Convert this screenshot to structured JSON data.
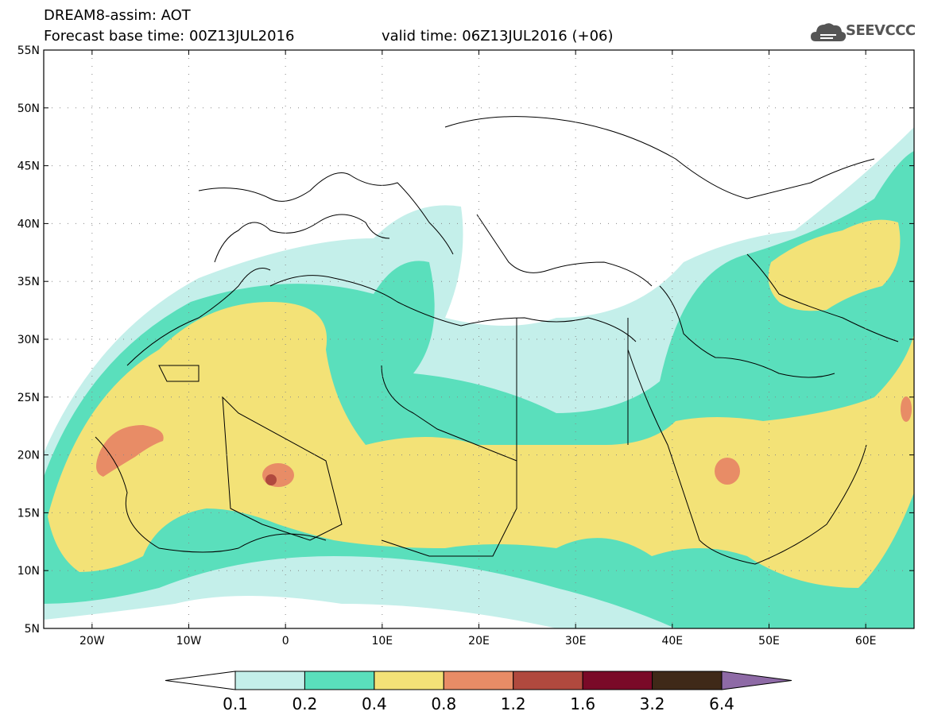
{
  "header": {
    "title": "DREAM8-assim: AOT",
    "base_time": "Forecast base time: 00Z13JUL2016",
    "valid_time": "valid time: 06Z13JUL2016 (+06)",
    "logo_text": "SEEVCCC",
    "logo_icon": "cloud-icon"
  },
  "map": {
    "lon_range": [
      -25,
      65
    ],
    "lat_range": [
      5,
      55
    ],
    "lon_ticks": [
      "20W",
      "10W",
      "0",
      "10E",
      "20E",
      "30E",
      "40E",
      "50E",
      "60E"
    ],
    "lon_tick_values": [
      -20,
      -10,
      0,
      10,
      20,
      30,
      40,
      50,
      60
    ],
    "lat_ticks": [
      "5N",
      "10N",
      "15N",
      "20N",
      "25N",
      "30N",
      "35N",
      "40N",
      "45N",
      "50N",
      "55N"
    ],
    "lat_tick_values": [
      5,
      10,
      15,
      20,
      25,
      30,
      35,
      40,
      45,
      50,
      55
    ],
    "grid": "dotted",
    "variable": "Aerosol optical thickness"
  },
  "colorbar": {
    "labels": [
      "0.1",
      "0.2",
      "0.4",
      "0.8",
      "1.2",
      "1.6",
      "3.2",
      "6.4"
    ],
    "colors": [
      "#ffffff",
      "#c4efea",
      "#5adfbc",
      "#f3e277",
      "#e88c66",
      "#b0493e",
      "#7a0a28",
      "#3f2918",
      "#8e6aa6"
    ],
    "extend": "both"
  }
}
